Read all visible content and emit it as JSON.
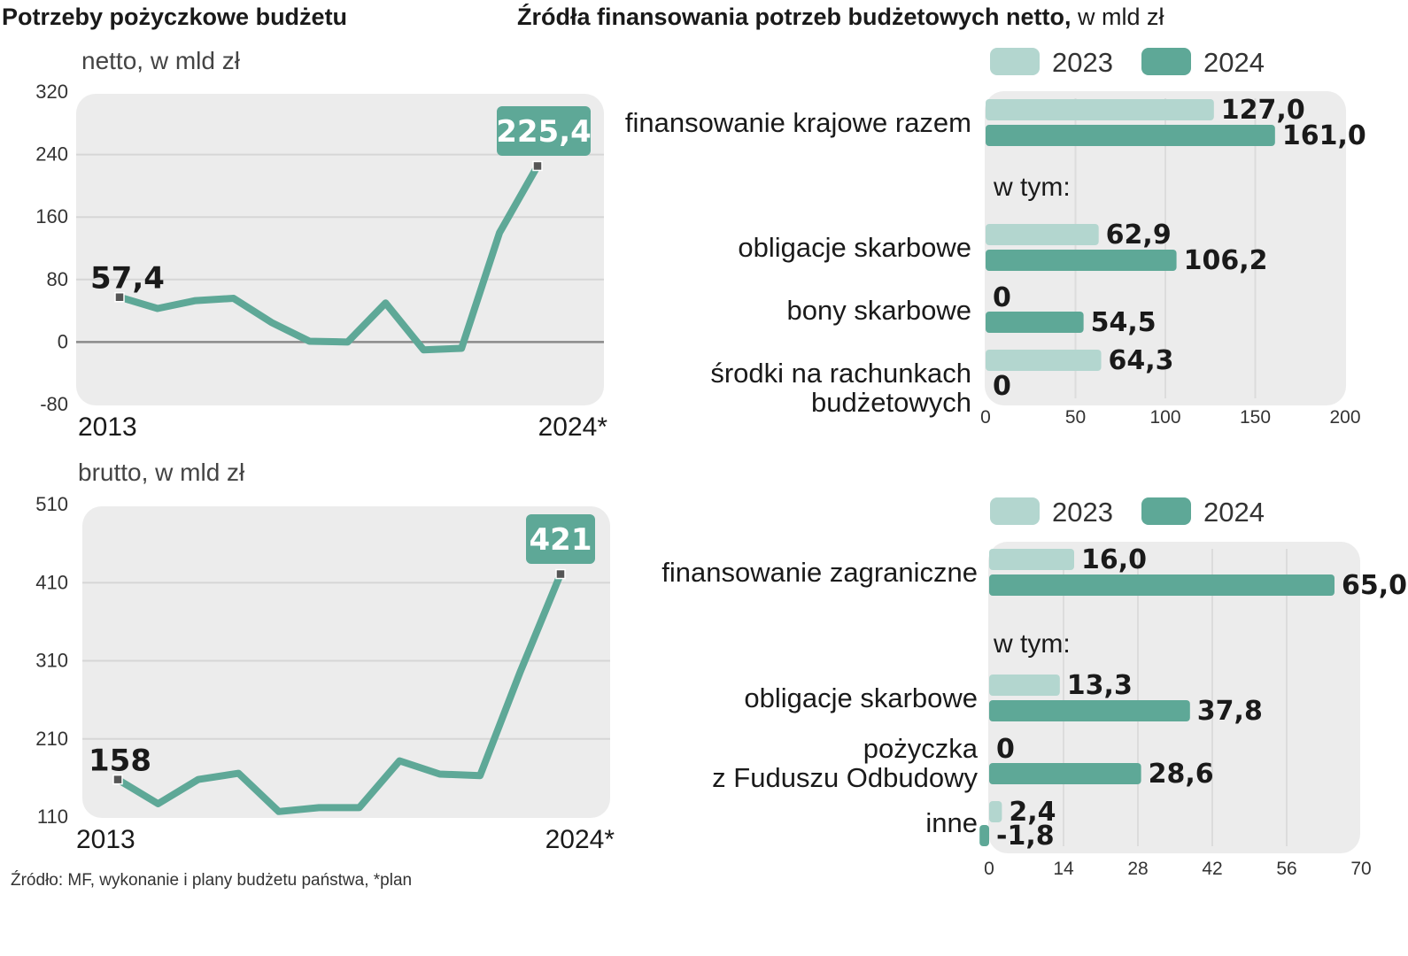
{
  "left_title": "Potrzeby pożyczkowe budżetu",
  "right_title": {
    "bold": "Źródła finansowania potrzeb budżetowych netto,",
    "regular": " w mld zł"
  },
  "source_note": "Źródło: MF, wykonanie i plany budżetu państwa, *plan",
  "colors": {
    "color_2023": "#b3d6cf",
    "color_2024": "#5ea897",
    "line": "#5ea897",
    "panel": "#ececec",
    "badge": "#5ea897"
  },
  "chart_data": [
    {
      "id": "netto",
      "type": "line",
      "subtitle": "netto, w mld zł",
      "x_start_label": "2013",
      "x_end_label": "2024*",
      "yticks": [
        "320",
        "240",
        "160",
        "80",
        "0",
        "-80"
      ],
      "ylim": [
        -80,
        320
      ],
      "x": [
        2013,
        2014,
        2015,
        2016,
        2017,
        2018,
        2019,
        2020,
        2021,
        2022,
        2023,
        2024
      ],
      "values": [
        57.4,
        43,
        53,
        56,
        25,
        1,
        0,
        50,
        -10,
        -8,
        140,
        225.4
      ],
      "start_label": "57,4",
      "end_label": "225,4"
    },
    {
      "id": "brutto",
      "type": "line",
      "subtitle": "brutto, w mld zł",
      "x_start_label": "2013",
      "x_end_label": "2024*",
      "yticks": [
        "510",
        "410",
        "310",
        "210",
        "110"
      ],
      "ylim": [
        110,
        510
      ],
      "x": [
        2013,
        2014,
        2015,
        2016,
        2017,
        2018,
        2019,
        2020,
        2021,
        2022,
        2023,
        2024
      ],
      "values": [
        158,
        127,
        158,
        166,
        117,
        122,
        122,
        182,
        165,
        163,
        296,
        421
      ],
      "start_label": "158",
      "end_label": "421"
    },
    {
      "id": "krajowe",
      "type": "bar",
      "orientation": "horizontal",
      "legend": [
        "2023",
        "2024"
      ],
      "xlim": [
        0,
        200
      ],
      "xticks": [
        "0",
        "50",
        "100",
        "150",
        "200"
      ],
      "subheading": "w tym:",
      "categories": [
        {
          "label_lines": [
            "finansowanie krajowe razem"
          ],
          "v2023": 127.0,
          "v2024": 161.0,
          "l2023": "127,0",
          "l2024": "161,0"
        },
        {
          "label_lines": [
            "obligacje skarbowe"
          ],
          "v2023": 62.9,
          "v2024": 106.2,
          "l2023": "62,9",
          "l2024": "106,2"
        },
        {
          "label_lines": [
            "bony skarbowe"
          ],
          "v2023": 0,
          "v2024": 54.5,
          "l2023": "0",
          "l2024": "54,5"
        },
        {
          "label_lines": [
            "środki na rachunkach",
            "budżetowych"
          ],
          "v2023": 64.3,
          "v2024": 0,
          "l2023": "64,3",
          "l2024": "0"
        }
      ]
    },
    {
      "id": "zagraniczne",
      "type": "bar",
      "orientation": "horizontal",
      "legend": [
        "2023",
        "2024"
      ],
      "xlim": [
        0,
        70
      ],
      "xticks": [
        "0",
        "14",
        "28",
        "42",
        "56",
        "70"
      ],
      "subheading": "w tym:",
      "categories": [
        {
          "label_lines": [
            "finansowanie zagraniczne"
          ],
          "v2023": 16.0,
          "v2024": 65.0,
          "l2023": "16,0",
          "l2024": "65,0"
        },
        {
          "label_lines": [
            "obligacje skarbowe"
          ],
          "v2023": 13.3,
          "v2024": 37.8,
          "l2023": "13,3",
          "l2024": "37,8"
        },
        {
          "label_lines": [
            "pożyczka",
            "z Fuduszu Odbudowy"
          ],
          "v2023": 0,
          "v2024": 28.6,
          "l2023": "0",
          "l2024": "28,6"
        },
        {
          "label_lines": [
            "inne"
          ],
          "v2023": 2.4,
          "v2024": -1.8,
          "l2023": "2,4",
          "l2024": "-1,8"
        }
      ]
    }
  ]
}
